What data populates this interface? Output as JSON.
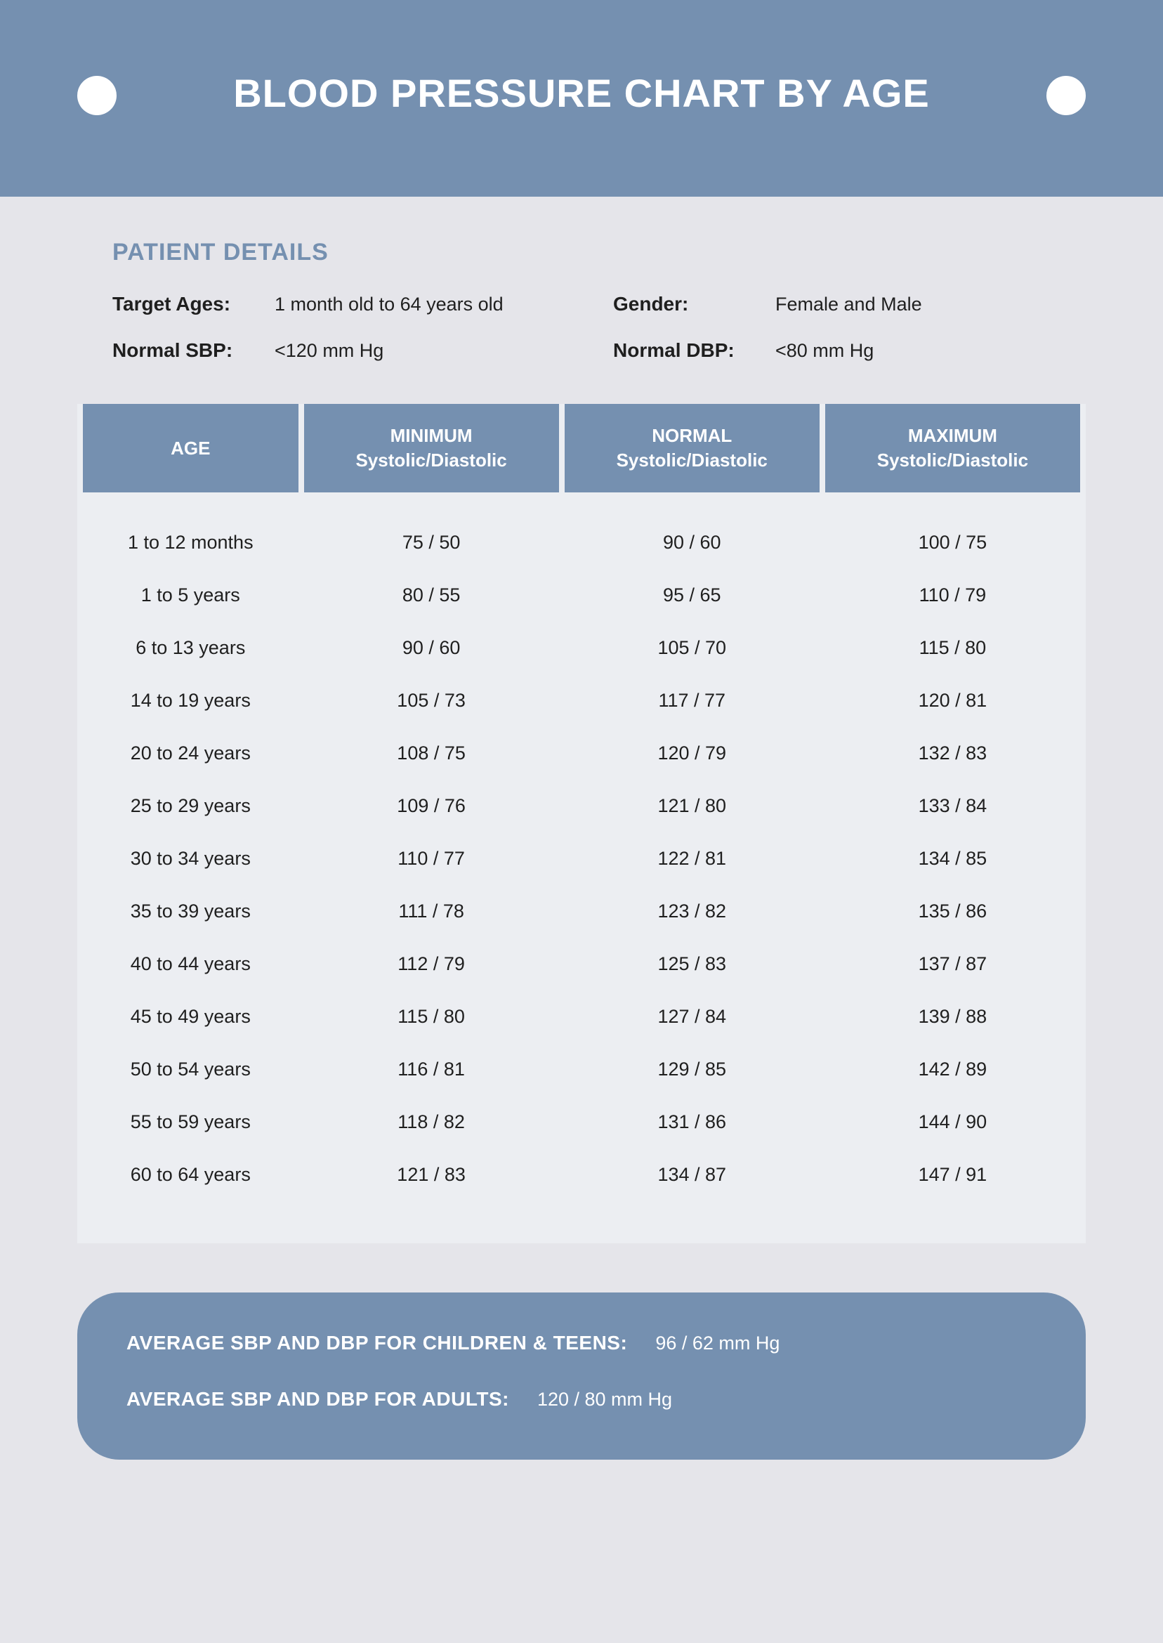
{
  "colors": {
    "header_bg": "#7590b0",
    "page_bg": "#e5e5ea",
    "table_wrap_bg": "#eceef2",
    "header_text": "#ffffff",
    "section_title": "#7590b0",
    "body_text": "#1f1f1f",
    "circle_fill": "#ffffff"
  },
  "header": {
    "title": "BLOOD PRESSURE CHART BY AGE"
  },
  "patient_details": {
    "section_title": "PATIENT DETAILS",
    "items": [
      {
        "label": "Target Ages:",
        "value": "1 month old to 64 years old"
      },
      {
        "label": "Gender:",
        "value": "Female and Male"
      },
      {
        "label": "Normal SBP:",
        "value": "<120 mm Hg"
      },
      {
        "label": "Normal DBP:",
        "value": "<80 mm Hg"
      }
    ]
  },
  "table": {
    "columns": [
      {
        "top": "AGE",
        "sub": ""
      },
      {
        "top": "MINIMUM",
        "sub": "Systolic/Diastolic"
      },
      {
        "top": "NORMAL",
        "sub": "Systolic/Diastolic"
      },
      {
        "top": "MAXIMUM",
        "sub": "Systolic/Diastolic"
      }
    ],
    "rows": [
      [
        "1 to 12 months",
        "75 / 50",
        "90 / 60",
        "100 / 75"
      ],
      [
        "1 to 5 years",
        "80 / 55",
        "95 / 65",
        "110 / 79"
      ],
      [
        "6 to 13 years",
        "90 / 60",
        "105 / 70",
        "115 / 80"
      ],
      [
        "14 to 19 years",
        "105 / 73",
        "117 / 77",
        "120 / 81"
      ],
      [
        "20 to 24 years",
        "108 / 75",
        "120 / 79",
        "132 / 83"
      ],
      [
        "25 to 29 years",
        "109 / 76",
        "121 / 80",
        "133 / 84"
      ],
      [
        "30 to 34 years",
        "110 / 77",
        "122 / 81",
        "134 / 85"
      ],
      [
        "35 to 39 years",
        "111 / 78",
        "123 / 82",
        "135 / 86"
      ],
      [
        "40 to 44 years",
        "112 / 79",
        "125 / 83",
        "137 / 87"
      ],
      [
        "45 to 49 years",
        "115 / 80",
        "127 / 84",
        "139 / 88"
      ],
      [
        "50 to 54 years",
        "116 / 81",
        "129 / 85",
        "142 / 89"
      ],
      [
        "55 to 59 years",
        "118 / 82",
        "131 / 86",
        "144 / 90"
      ],
      [
        "60 to 64 years",
        "121 / 83",
        "134 / 87",
        "147 / 91"
      ]
    ]
  },
  "summary": {
    "rows": [
      {
        "label": "AVERAGE SBP AND DBP FOR CHILDREN & TEENS:",
        "value": "96 / 62 mm Hg"
      },
      {
        "label": "AVERAGE SBP AND DBP FOR ADULTS:",
        "value": "120 / 80 mm Hg"
      }
    ]
  }
}
